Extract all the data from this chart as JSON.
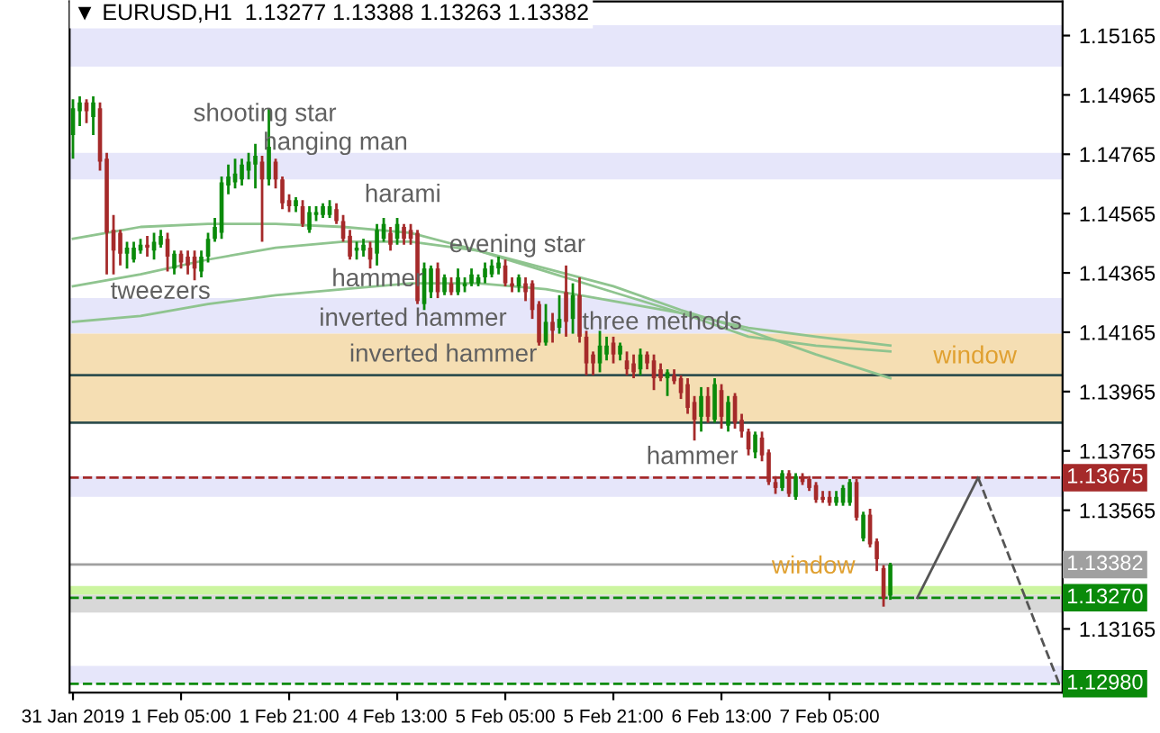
{
  "chart_data": {
    "type": "candlestick",
    "title": "▼ EURUSD,H1  1.13277 1.13388 1.13263 1.13382",
    "categories": [
      "31 Jan 2019",
      null,
      null,
      null,
      null,
      null,
      null,
      null,
      null,
      null,
      null,
      null,
      null,
      null,
      null,
      null,
      "1 Feb 05:00",
      null,
      null,
      null,
      null,
      null,
      null,
      null,
      null,
      null,
      null,
      null,
      null,
      null,
      null,
      null,
      "1 Feb 21:00",
      null,
      null,
      null,
      null,
      null,
      null,
      null,
      null,
      null,
      null,
      null,
      null,
      null,
      null,
      null,
      "4 Feb 13:00",
      null,
      null,
      null,
      null,
      null,
      null,
      null,
      null,
      null,
      null,
      null,
      null,
      null,
      null,
      null,
      "5 Feb 05:00",
      null,
      null,
      null,
      null,
      null,
      null,
      null,
      null,
      null,
      null,
      null,
      null,
      null,
      null,
      null,
      "5 Feb 21:00",
      null,
      null,
      null,
      null,
      null,
      null,
      null,
      null,
      null,
      null,
      null,
      null,
      null,
      null,
      null,
      "6 Feb 13:00",
      null,
      null,
      null,
      null,
      null,
      null,
      null,
      null,
      null,
      null,
      null,
      null,
      null,
      null,
      null,
      "7 Feb 05:00",
      null,
      null,
      null,
      null,
      null,
      null,
      null,
      null,
      null,
      null,
      null,
      null,
      null,
      null,
      null,
      null,
      null,
      null,
      null,
      null,
      null,
      null,
      null,
      null,
      null,
      null,
      null,
      null,
      null,
      null,
      null,
      null,
      null,
      null
    ],
    "ohlc": [
      [
        1.1483,
        1.1495,
        1.1475,
        1.1492
      ],
      [
        1.1491,
        1.1496,
        1.1486,
        1.1494
      ],
      [
        1.1494,
        1.1495,
        1.1487,
        1.1491
      ],
      [
        1.1489,
        1.1496,
        1.1483,
        1.1494
      ],
      [
        1.1492,
        1.1494,
        1.1471,
        1.1474
      ],
      [
        1.1475,
        1.1477,
        1.1436,
        1.145
      ],
      [
        1.1451,
        1.1456,
        1.1436,
        1.1444
      ],
      [
        1.145,
        1.1451,
        1.1439,
        1.1443
      ],
      [
        1.1443,
        1.1447,
        1.1438,
        1.1445
      ],
      [
        1.1441,
        1.1447,
        1.144,
        1.1445
      ],
      [
        1.1444,
        1.1448,
        1.1443,
        1.1446
      ],
      [
        1.1446,
        1.1449,
        1.1442,
        1.1445
      ],
      [
        1.1444,
        1.145,
        1.1441,
        1.1447
      ],
      [
        1.1446,
        1.1451,
        1.1445,
        1.1449
      ],
      [
        1.1448,
        1.145,
        1.1437,
        1.1442
      ],
      [
        1.1438,
        1.1444,
        1.1436,
        1.1443
      ],
      [
        1.1443,
        1.1444,
        1.1438,
        1.144
      ],
      [
        1.1442,
        1.1444,
        1.1436,
        1.1439
      ],
      [
        1.1442,
        1.1444,
        1.1434,
        1.1438
      ],
      [
        1.1437,
        1.1444,
        1.1435,
        1.1442
      ],
      [
        1.1442,
        1.145,
        1.144,
        1.1448
      ],
      [
        1.1448,
        1.1455,
        1.1447,
        1.1452
      ],
      [
        1.145,
        1.1469,
        1.1448,
        1.1467
      ],
      [
        1.1466,
        1.1473,
        1.1463,
        1.1469
      ],
      [
        1.1467,
        1.1475,
        1.1465,
        1.147
      ],
      [
        1.1468,
        1.1475,
        1.1466,
        1.1473
      ],
      [
        1.1471,
        1.1477,
        1.1468,
        1.1474
      ],
      [
        1.1473,
        1.148,
        1.1465,
        1.1476
      ],
      [
        1.1474,
        1.1476,
        1.1447,
        1.1468
      ],
      [
        1.1468,
        1.1492,
        1.1466,
        1.1479
      ],
      [
        1.1474,
        1.1475,
        1.1465,
        1.1468
      ],
      [
        1.1468,
        1.1469,
        1.1458,
        1.146
      ],
      [
        1.1461,
        1.1463,
        1.1457,
        1.1459
      ],
      [
        1.1459,
        1.1462,
        1.1457,
        1.1461
      ],
      [
        1.1459,
        1.1461,
        1.1452,
        1.1453
      ],
      [
        1.1451,
        1.1459,
        1.145,
        1.1457
      ],
      [
        1.1456,
        1.1459,
        1.1454,
        1.1457
      ],
      [
        1.1456,
        1.146,
        1.1455,
        1.1459
      ],
      [
        1.1456,
        1.1461,
        1.1455,
        1.1459
      ],
      [
        1.1458,
        1.146,
        1.1453,
        1.1454
      ],
      [
        1.1454,
        1.1456,
        1.1447,
        1.1448
      ],
      [
        1.1449,
        1.1451,
        1.1441,
        1.1442
      ],
      [
        1.1444,
        1.1447,
        1.1441,
        1.1445
      ],
      [
        1.1444,
        1.1448,
        1.1442,
        1.1446
      ],
      [
        1.1445,
        1.1447,
        1.1438,
        1.1441
      ],
      [
        1.1443,
        1.1453,
        1.1439,
        1.1451
      ],
      [
        1.1448,
        1.1455,
        1.1447,
        1.1453
      ],
      [
        1.145,
        1.1452,
        1.1444,
        1.1446
      ],
      [
        1.1448,
        1.1455,
        1.1446,
        1.1453
      ],
      [
        1.1452,
        1.1453,
        1.1446,
        1.1448
      ],
      [
        1.1451,
        1.1453,
        1.1446,
        1.1448
      ],
      [
        1.145,
        1.1451,
        1.1426,
        1.1427
      ],
      [
        1.1426,
        1.144,
        1.1424,
        1.1438
      ],
      [
        1.143,
        1.1439,
        1.1428,
        1.1438
      ],
      [
        1.1438,
        1.144,
        1.1428,
        1.143
      ],
      [
        1.143,
        1.1436,
        1.1429,
        1.1435
      ],
      [
        1.1433,
        1.1435,
        1.1429,
        1.143
      ],
      [
        1.143,
        1.1438,
        1.1429,
        1.1435
      ],
      [
        1.1432,
        1.1435,
        1.143,
        1.1433
      ],
      [
        1.1433,
        1.1438,
        1.1432,
        1.1436
      ],
      [
        1.1433,
        1.1436,
        1.1432,
        1.1435
      ],
      [
        1.1435,
        1.144,
        1.1433,
        1.1438
      ],
      [
        1.1436,
        1.1441,
        1.1435,
        1.1439
      ],
      [
        1.1438,
        1.1442,
        1.1436,
        1.144
      ],
      [
        1.1439,
        1.1441,
        1.1432,
        1.1433
      ],
      [
        1.1433,
        1.1435,
        1.143,
        1.1432
      ],
      [
        1.1432,
        1.1436,
        1.143,
        1.1435
      ],
      [
        1.1433,
        1.1435,
        1.1427,
        1.143
      ],
      [
        1.1433,
        1.1434,
        1.1421,
        1.1424
      ],
      [
        1.1426,
        1.1427,
        1.1412,
        1.1413
      ],
      [
        1.1413,
        1.1426,
        1.1412,
        1.142
      ],
      [
        1.142,
        1.1423,
        1.1413,
        1.1417
      ],
      [
        1.1418,
        1.1429,
        1.1416,
        1.1421
      ],
      [
        1.143,
        1.1439,
        1.1415,
        1.142
      ],
      [
        1.1421,
        1.1433,
        1.1416,
        1.1429
      ],
      [
        1.1429,
        1.1435,
        1.1413,
        1.1415
      ],
      [
        1.1415,
        1.1417,
        1.1402,
        1.1406
      ],
      [
        1.1409,
        1.141,
        1.1402,
        1.1406
      ],
      [
        1.1406,
        1.1417,
        1.1403,
        1.1412
      ],
      [
        1.1409,
        1.1415,
        1.1407,
        1.1412
      ],
      [
        1.1413,
        1.1415,
        1.1406,
        1.1409
      ],
      [
        1.1409,
        1.1413,
        1.1407,
        1.1412
      ],
      [
        1.1407,
        1.141,
        1.1402,
        1.1404
      ],
      [
        1.1406,
        1.1409,
        1.1401,
        1.1403
      ],
      [
        1.1404,
        1.1411,
        1.1402,
        1.1409
      ],
      [
        1.1409,
        1.141,
        1.1404,
        1.1406
      ],
      [
        1.1407,
        1.1409,
        1.1397,
        1.1401
      ],
      [
        1.1404,
        1.1406,
        1.14,
        1.1401
      ],
      [
        1.1401,
        1.1404,
        1.1395,
        1.1403
      ],
      [
        1.1402,
        1.1404,
        1.1399,
        1.14
      ],
      [
        1.1401,
        1.1402,
        1.1394,
        1.1396
      ],
      [
        1.1399,
        1.1401,
        1.1389,
        1.1391
      ],
      [
        1.1393,
        1.1395,
        1.138,
        1.1387
      ],
      [
        1.1388,
        1.1398,
        1.1383,
        1.1395
      ],
      [
        1.1395,
        1.1398,
        1.1386,
        1.1388
      ],
      [
        1.1387,
        1.1401,
        1.1386,
        1.1399
      ],
      [
        1.1397,
        1.1399,
        1.1384,
        1.1388
      ],
      [
        1.1385,
        1.1395,
        1.1383,
        1.1393
      ],
      [
        1.1395,
        1.1396,
        1.1384,
        1.1386
      ],
      [
        1.1387,
        1.1389,
        1.1381,
        1.1383
      ],
      [
        1.1383,
        1.1384,
        1.1375,
        1.1377
      ],
      [
        1.1376,
        1.1383,
        1.1374,
        1.1382
      ],
      [
        1.1381,
        1.1383,
        1.1373,
        1.1375
      ],
      [
        1.1376,
        1.1377,
        1.1365,
        1.1366
      ],
      [
        1.1366,
        1.1368,
        1.1362,
        1.1364
      ],
      [
        1.1364,
        1.137,
        1.1363,
        1.1369
      ],
      [
        1.1369,
        1.137,
        1.1361,
        1.1362
      ],
      [
        1.1361,
        1.1369,
        1.136,
        1.1368
      ],
      [
        1.1368,
        1.1369,
        1.1365,
        1.1366
      ],
      [
        1.1367,
        1.1368,
        1.1363,
        1.1364
      ],
      [
        1.1365,
        1.1366,
        1.1359,
        1.136
      ],
      [
        1.1361,
        1.1363,
        1.1359,
        1.136
      ],
      [
        1.1361,
        1.1363,
        1.1358,
        1.1359
      ],
      [
        1.1359,
        1.1363,
        1.1358,
        1.1361
      ],
      [
        1.1359,
        1.1365,
        1.1358,
        1.1364
      ],
      [
        1.1359,
        1.1367,
        1.1358,
        1.1366
      ],
      [
        1.1366,
        1.1367,
        1.1353,
        1.1354
      ],
      [
        1.1347,
        1.1356,
        1.1346,
        1.1355
      ],
      [
        1.1355,
        1.1357,
        1.1344,
        1.1345
      ],
      [
        1.1346,
        1.1347,
        1.1336,
        1.134
      ],
      [
        1.1337,
        1.1338,
        1.1324,
        1.1327
      ],
      [
        1.13277,
        1.13388,
        1.13263,
        1.13382
      ],
      null,
      null,
      null,
      null,
      null,
      null,
      null,
      null,
      null,
      null,
      null,
      null,
      null,
      null,
      null,
      null,
      null,
      null,
      null,
      null,
      null,
      null,
      null,
      null,
      null
    ],
    "colors": [
      "#0a8a0a",
      "#0a8a0a",
      "#a52a2a",
      "#0a8a0a",
      "#a52a2a",
      "#a52a2a",
      "#a52a2a",
      "#a52a2a",
      "#0a8a0a",
      "#0a8a0a",
      "#0a8a0a",
      "#a52a2a",
      "#0a8a0a",
      "#0a8a0a",
      "#a52a2a",
      "#0a8a0a",
      "#a52a2a",
      "#a52a2a",
      "#a52a2a",
      "#0a8a0a",
      "#0a8a0a",
      "#0a8a0a",
      "#0a8a0a",
      "#0a8a0a",
      "#0a8a0a",
      "#0a8a0a",
      "#0a8a0a",
      "#0a8a0a",
      "#a52a2a",
      "#0a8a0a",
      "#a52a2a",
      "#a52a2a",
      "#a52a2a",
      "#0a8a0a",
      "#a52a2a",
      "#0a8a0a",
      "#0a8a0a",
      "#0a8a0a",
      "#0a8a0a",
      "#a52a2a",
      "#a52a2a",
      "#a52a2a",
      "#0a8a0a",
      "#0a8a0a",
      "#a52a2a",
      "#0a8a0a",
      "#0a8a0a",
      "#a52a2a",
      "#0a8a0a",
      "#a52a2a",
      "#a52a2a",
      "#a52a2a",
      "#0a8a0a",
      "#0a8a0a",
      "#a52a2a",
      "#0a8a0a",
      "#a52a2a",
      "#0a8a0a",
      "#0a8a0a",
      "#0a8a0a",
      "#0a8a0a",
      "#0a8a0a",
      "#0a8a0a",
      "#0a8a0a",
      "#a52a2a",
      "#a52a2a",
      "#0a8a0a",
      "#a52a2a",
      "#a52a2a",
      "#a52a2a",
      "#0a8a0a",
      "#a52a2a",
      "#0a8a0a",
      "#a52a2a",
      "#0a8a0a",
      "#a52a2a",
      "#a52a2a",
      "#a52a2a",
      "#0a8a0a",
      "#0a8a0a",
      "#a52a2a",
      "#0a8a0a",
      "#a52a2a",
      "#a52a2a",
      "#0a8a0a",
      "#a52a2a",
      "#a52a2a",
      "#a52a2a",
      "#0a8a0a",
      "#a52a2a",
      "#a52a2a",
      "#a52a2a",
      "#a52a2a",
      "#0a8a0a",
      "#a52a2a",
      "#0a8a0a",
      "#a52a2a",
      "#0a8a0a",
      "#a52a2a",
      "#a52a2a",
      "#a52a2a",
      "#0a8a0a",
      "#a52a2a",
      "#a52a2a",
      "#a52a2a",
      "#0a8a0a",
      "#a52a2a",
      "#0a8a0a",
      "#a52a2a",
      "#a52a2a",
      "#a52a2a",
      "#a52a2a",
      "#a52a2a",
      "#0a8a0a",
      "#0a8a0a",
      "#0a8a0a",
      "#a52a2a",
      "#0a8a0a",
      "#a52a2a",
      "#a52a2a",
      "#a52a2a",
      "#0a8a0a",
      null,
      null,
      null,
      null,
      null,
      null,
      null,
      null,
      null,
      null,
      null,
      null,
      null,
      null,
      null,
      null,
      null,
      null,
      null,
      null,
      null,
      null,
      null,
      null,
      null
    ],
    "ylim": [
      1.1295,
      1.1528
    ],
    "yticks": [
      1.15165,
      1.14965,
      1.14765,
      1.14565,
      1.14365,
      1.14165,
      1.13965,
      1.13765,
      1.13565,
      1.13165
    ],
    "grid": false,
    "legend": false,
    "series": [
      {
        "type": "line",
        "color": "#8fc48f",
        "values": [
          1.1448,
          null,
          null,
          null,
          null,
          null,
          null,
          null,
          null,
          null,
          1.1452,
          null,
          null,
          null,
          null,
          null,
          null,
          null,
          null,
          null,
          1.1453,
          null,
          null,
          null,
          null,
          null,
          null,
          null,
          null,
          null,
          1.1453,
          null,
          null,
          null,
          null,
          null,
          null,
          null,
          null,
          null,
          1.1452,
          null,
          null,
          null,
          null,
          null,
          null,
          null,
          null,
          null,
          1.145,
          null,
          null,
          null,
          null,
          null,
          null,
          null,
          null,
          null,
          1.1444,
          null,
          null,
          null,
          null,
          null,
          null,
          null,
          null,
          null,
          1.1437,
          null,
          null,
          null,
          null,
          null,
          null,
          null,
          null,
          null,
          1.143,
          null,
          null,
          null,
          null,
          null,
          null,
          null,
          null,
          null,
          1.1423,
          null,
          null,
          null,
          null,
          null,
          null,
          null,
          null,
          null,
          1.1415,
          null,
          null,
          null,
          null,
          null,
          null,
          null,
          null,
          null,
          1.1412,
          null,
          null,
          null,
          null,
          null,
          null,
          null,
          null,
          null,
          null,
          1.141,
          null,
          null,
          null,
          null,
          null,
          null,
          null,
          null,
          null,
          null,
          null,
          null,
          null,
          null,
          null,
          null,
          null,
          null,
          null,
          null,
          null,
          null,
          null,
          null,
          null
        ]
      },
      {
        "type": "line",
        "color": "#8fc48f",
        "values": [
          1.1432,
          null,
          null,
          null,
          null,
          null,
          null,
          null,
          null,
          null,
          1.1436,
          null,
          null,
          null,
          null,
          null,
          null,
          null,
          null,
          null,
          1.1441,
          null,
          null,
          null,
          null,
          null,
          null,
          null,
          null,
          null,
          1.1445,
          null,
          null,
          null,
          null,
          null,
          null,
          null,
          null,
          null,
          1.1447,
          null,
          null,
          null,
          null,
          null,
          null,
          null,
          null,
          null,
          1.1447,
          null,
          null,
          null,
          null,
          null,
          null,
          null,
          null,
          null,
          1.1444,
          null,
          null,
          null,
          null,
          null,
          null,
          null,
          null,
          null,
          1.1438,
          null,
          null,
          null,
          null,
          null,
          null,
          null,
          null,
          null,
          1.1432,
          null,
          null,
          null,
          null,
          null,
          null,
          null,
          null,
          null,
          1.1424,
          null,
          null,
          null,
          null,
          null,
          null,
          null,
          null,
          null,
          1.1417,
          null,
          null,
          null,
          null,
          null,
          null,
          null,
          null,
          null,
          1.1409,
          null,
          null,
          null,
          null,
          null,
          null,
          null,
          null,
          null,
          null,
          1.1401,
          null,
          null,
          null,
          null,
          null,
          null,
          null,
          null,
          null,
          null,
          null,
          null,
          null,
          null,
          null,
          null,
          null,
          null,
          null,
          null,
          null,
          null,
          null,
          null,
          null
        ]
      },
      {
        "type": "line",
        "color": "#8fc48f",
        "values": [
          1.142,
          null,
          null,
          null,
          null,
          null,
          null,
          null,
          null,
          null,
          1.1422,
          null,
          null,
          null,
          null,
          null,
          null,
          null,
          null,
          null,
          1.1426,
          null,
          null,
          null,
          null,
          null,
          null,
          null,
          null,
          null,
          1.1429,
          null,
          null,
          null,
          null,
          null,
          null,
          null,
          null,
          null,
          1.1431,
          null,
          null,
          null,
          null,
          null,
          null,
          null,
          null,
          null,
          1.1433,
          null,
          null,
          null,
          null,
          null,
          null,
          null,
          null,
          null,
          1.1433,
          null,
          null,
          null,
          null,
          null,
          null,
          null,
          null,
          null,
          1.1431,
          null,
          null,
          null,
          null,
          null,
          null,
          null,
          null,
          null,
          1.1427,
          null,
          null,
          null,
          null,
          null,
          null,
          null,
          null,
          null,
          1.1423,
          null,
          null,
          null,
          null,
          null,
          null,
          null,
          null,
          null,
          1.1418,
          null,
          null,
          null,
          null,
          null,
          null,
          null,
          null,
          null,
          1.1415,
          null,
          null,
          null,
          null,
          null,
          null,
          null,
          null,
          null,
          null,
          1.1412,
          null,
          null,
          null,
          null,
          null,
          null,
          null,
          null,
          null,
          null,
          null,
          null,
          null,
          null,
          null,
          null,
          null,
          null,
          null,
          null,
          null,
          null,
          null,
          null,
          null
        ]
      },
      {
        "type": "line",
        "color": "#555555",
        "line_style": "solid",
        "values": [
          null,
          null,
          null,
          null,
          null,
          null,
          null,
          null,
          null,
          null,
          null,
          null,
          null,
          null,
          null,
          null,
          null,
          null,
          null,
          null,
          null,
          null,
          null,
          null,
          null,
          null,
          null,
          null,
          null,
          null,
          null,
          null,
          null,
          null,
          null,
          null,
          null,
          null,
          null,
          null,
          null,
          null,
          null,
          null,
          null,
          null,
          null,
          null,
          null,
          null,
          null,
          null,
          null,
          null,
          null,
          null,
          null,
          null,
          null,
          null,
          null,
          null,
          null,
          null,
          null,
          null,
          null,
          null,
          null,
          null,
          null,
          null,
          null,
          null,
          null,
          null,
          null,
          null,
          null,
          null,
          null,
          null,
          null,
          null,
          null,
          null,
          null,
          null,
          null,
          null,
          null,
          null,
          null,
          null,
          null,
          null,
          null,
          null,
          null,
          null,
          null,
          null,
          null,
          null,
          null,
          null,
          null,
          null,
          null,
          null,
          null,
          null,
          null,
          null,
          null,
          null,
          null,
          null,
          null,
          null,
          null,
          null,
          null,
          null,
          null,
          1.1327,
          null,
          null,
          null,
          null,
          null,
          null,
          null,
          null,
          1.13675,
          null,
          null,
          null,
          null,
          null,
          null,
          null,
          null,
          null,
          null,
          null,
          null
        ]
      },
      {
        "type": "line",
        "color": "#555555",
        "line_style": "dashed",
        "values": [
          null,
          null,
          null,
          null,
          null,
          null,
          null,
          null,
          null,
          null,
          null,
          null,
          null,
          null,
          null,
          null,
          null,
          null,
          null,
          null,
          null,
          null,
          null,
          null,
          null,
          null,
          null,
          null,
          null,
          null,
          null,
          null,
          null,
          null,
          null,
          null,
          null,
          null,
          null,
          null,
          null,
          null,
          null,
          null,
          null,
          null,
          null,
          null,
          null,
          null,
          null,
          null,
          null,
          null,
          null,
          null,
          null,
          null,
          null,
          null,
          null,
          null,
          null,
          null,
          null,
          null,
          null,
          null,
          null,
          null,
          null,
          null,
          null,
          null,
          null,
          null,
          null,
          null,
          null,
          null,
          null,
          null,
          null,
          null,
          null,
          null,
          null,
          null,
          null,
          null,
          null,
          null,
          null,
          null,
          null,
          null,
          null,
          null,
          null,
          null,
          null,
          null,
          null,
          null,
          null,
          null,
          null,
          null,
          null,
          null,
          null,
          null,
          null,
          null,
          null,
          null,
          null,
          null,
          null,
          null,
          null,
          null,
          null,
          null,
          null,
          null,
          null,
          null,
          null,
          null,
          null,
          null,
          null,
          null,
          1.13675,
          null,
          null,
          null,
          null,
          null,
          null,
          null,
          null,
          null,
          null,
          null,
          1.1298
        ]
      }
    ],
    "bands": [
      {
        "axis": "y",
        "from": 1.1506,
        "to": 1.152,
        "color": "#e6e6fa"
      },
      {
        "axis": "y",
        "from": 1.1468,
        "to": 1.1477,
        "color": "#e6e6fa"
      },
      {
        "axis": "y",
        "from": 1.1416,
        "to": 1.1428,
        "color": "#e6e6fa"
      },
      {
        "axis": "y",
        "from": 1.1402,
        "to": 1.1416,
        "color": "#f5deb3"
      },
      {
        "axis": "y",
        "from": 1.1386,
        "to": 1.1402,
        "color": "#f5deb3"
      },
      {
        "axis": "y",
        "from": 1.1361,
        "to": 1.1368,
        "color": "#e6e6fa"
      },
      {
        "axis": "y",
        "from": 1.1328,
        "to": 1.1331,
        "color": "#ccf5a0"
      },
      {
        "axis": "y",
        "from": 1.1322,
        "to": 1.1328,
        "color": "#d8d8d8"
      },
      {
        "axis": "y",
        "from": 1.1298,
        "to": 1.1304,
        "color": "#e6e6fa"
      }
    ],
    "ref_lines": [
      {
        "axis": "y",
        "value": 1.1402,
        "color": "#2f4f4f",
        "line_style": "solid"
      },
      {
        "axis": "y",
        "value": 1.1386,
        "color": "#2f4f4f",
        "line_style": "solid"
      },
      {
        "axis": "y",
        "value": 1.13675,
        "label": "1.13675",
        "color": "#a52a2a",
        "line_style": "dashed"
      },
      {
        "axis": "y",
        "value": 1.13382,
        "label": "1.13382",
        "color": "#a0a0a0",
        "line_style": "solid"
      },
      {
        "axis": "y",
        "value": 1.1327,
        "label": "1.13270",
        "color": "#0a8a0a",
        "line_style": "dashed"
      },
      {
        "axis": "y",
        "value": 1.1298,
        "label": "1.12980",
        "color": "#0a8a0a",
        "line_style": "dashed"
      }
    ],
    "annotations": [
      "shooting star",
      "hanging man",
      "harami",
      "evening star",
      "hammer",
      "tweezers",
      "inverted hammer",
      "inverted hammer",
      "three methods",
      "window",
      "hammer",
      "window"
    ]
  }
}
